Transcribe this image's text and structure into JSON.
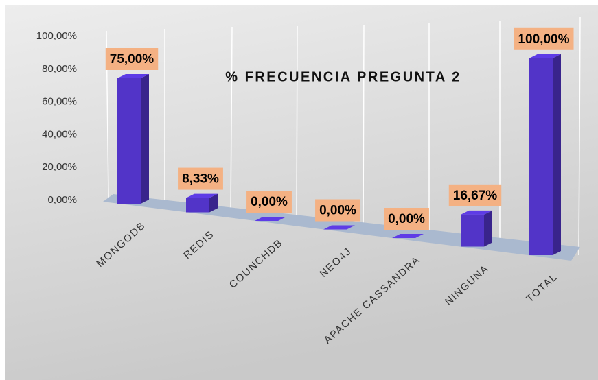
{
  "chart_data": {
    "type": "bar3d",
    "title": "% FRECUENCIA PREGUNTA 2",
    "categories": [
      "MONGODB",
      "REDIS",
      "COUNCHDB",
      "NEO4J",
      "APACHE CASSANDRA",
      "NINGUNA",
      "TOTAL"
    ],
    "values": [
      75,
      8.33,
      0,
      0,
      0,
      16.67,
      100
    ],
    "value_labels": [
      "75,00%",
      "8,33%",
      "0,00%",
      "0,00%",
      "0,00%",
      "16,67%",
      "100,00%"
    ],
    "color": "#5234c8",
    "label_box_color": "#f4b183",
    "ylim": [
      0,
      100
    ],
    "yticks": [
      {
        "value": 0,
        "label": "0,00%"
      },
      {
        "value": 20,
        "label": "20,00%"
      },
      {
        "value": 40,
        "label": "40,00%"
      },
      {
        "value": 60,
        "label": "60,00%"
      },
      {
        "value": 80,
        "label": "80,00%"
      },
      {
        "value": 100,
        "label": "100,00%"
      }
    ]
  }
}
